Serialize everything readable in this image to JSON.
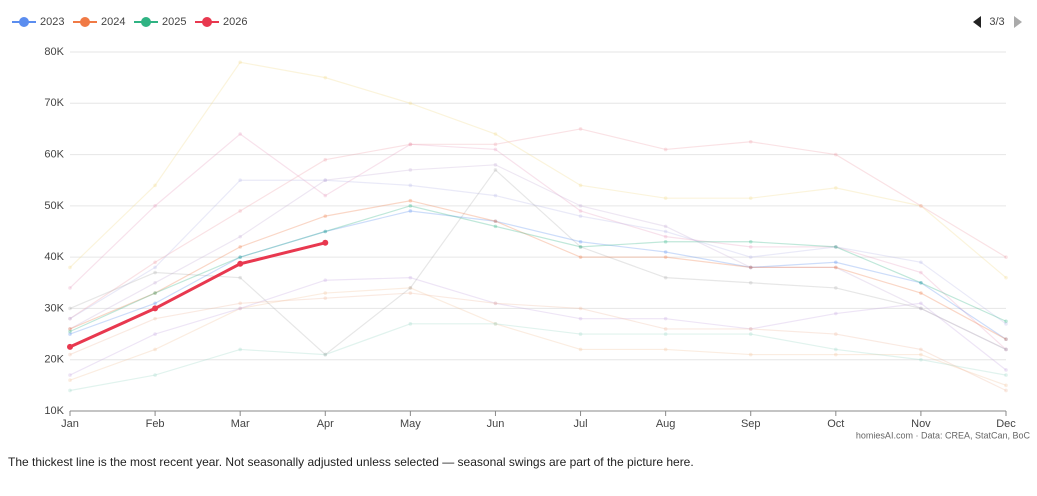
{
  "chart_data": {
    "type": "line",
    "categories": [
      "Jan",
      "Feb",
      "Mar",
      "Apr",
      "May",
      "Jun",
      "Jul",
      "Aug",
      "Sep",
      "Oct",
      "Nov",
      "Dec"
    ],
    "ylim": [
      10000,
      80000
    ],
    "yticks": [
      {
        "value": 10000,
        "label": "10K"
      },
      {
        "value": 20000,
        "label": "20K"
      },
      {
        "value": 30000,
        "label": "30K"
      },
      {
        "value": 40000,
        "label": "40K"
      },
      {
        "value": 50000,
        "label": "50K"
      },
      {
        "value": 60000,
        "label": "60K"
      },
      {
        "value": 70000,
        "label": "70K"
      },
      {
        "value": 80000,
        "label": "80K"
      }
    ],
    "grid": true,
    "legend_page": "3/3",
    "source": "homiesAI.com  ·  Data: CREA, StatCan, BoC",
    "note": "The thickest line is the most recent year. Not seasonally adjusted unless selected — seasonal swings are part of the picture here.",
    "series": [
      {
        "color": "#f2d98a",
        "values": [
          38000,
          54000,
          78000,
          75000,
          70000,
          64000,
          54000,
          51500,
          51500,
          53500,
          50000,
          36000
        ]
      },
      {
        "color": "#e8a0c0",
        "values": [
          34000,
          50000,
          64000,
          52000,
          62000,
          61000,
          49000,
          44000,
          42000,
          42000,
          37000,
          22000
        ]
      },
      {
        "color": "#f0a0a8",
        "values": [
          28000,
          39000,
          49000,
          59000,
          62000,
          62000,
          65000,
          61000,
          62500,
          60000,
          50000,
          40000
        ]
      },
      {
        "color": "#f2c29a",
        "values": [
          16000,
          22000,
          30000,
          33000,
          34000,
          27000,
          22000,
          22000,
          21000,
          21000,
          21000,
          15000
        ]
      },
      {
        "color": "#9ad6c8",
        "values": [
          14000,
          17000,
          22000,
          21000,
          27000,
          27000,
          25000,
          25000,
          25000,
          22000,
          20000,
          17000
        ]
      },
      {
        "color": "#c6a8e0",
        "values": [
          17000,
          25000,
          30000,
          35500,
          36000,
          31000,
          28000,
          28000,
          26000,
          29000,
          31000,
          18000
        ]
      },
      {
        "color": "#b8b8e8",
        "values": [
          28000,
          38000,
          55000,
          55000,
          54000,
          52000,
          48000,
          45000,
          40000,
          42000,
          39000,
          27000
        ]
      },
      {
        "color": "#f0b8a0",
        "values": [
          21000,
          28000,
          31000,
          32000,
          33000,
          31000,
          30000,
          26000,
          26000,
          25000,
          22000,
          14000
        ]
      },
      {
        "color": "#c8b0d8",
        "values": [
          26000,
          35000,
          44000,
          55000,
          57000,
          58000,
          50000,
          46000,
          38000,
          38000,
          30000,
          22000
        ]
      },
      {
        "color": "#b0b0b0",
        "values": [
          30000,
          37000,
          36000,
          21000,
          34000,
          57000,
          42000,
          36000,
          35000,
          34000,
          30000,
          22000
        ]
      },
      {
        "name": "2023",
        "color": "#5b8def",
        "values": [
          25000,
          31000,
          40000,
          45000,
          49000,
          47000,
          43000,
          41000,
          38000,
          39000,
          35000,
          24000
        ]
      },
      {
        "name": "2024",
        "color": "#f07a45",
        "values": [
          26000,
          33000,
          42000,
          48000,
          51000,
          47000,
          40000,
          40000,
          38000,
          38000,
          33000,
          24000
        ]
      },
      {
        "name": "2025",
        "color": "#2fb383",
        "values": [
          25500,
          33000,
          40000,
          45000,
          50000,
          46000,
          42000,
          43000,
          43000,
          42000,
          35000,
          27500
        ]
      },
      {
        "name": "2026",
        "color": "#e8384f",
        "values": [
          22500,
          30000,
          38700,
          42800,
          null,
          null,
          null,
          null,
          null,
          null,
          null,
          null
        ]
      }
    ]
  }
}
